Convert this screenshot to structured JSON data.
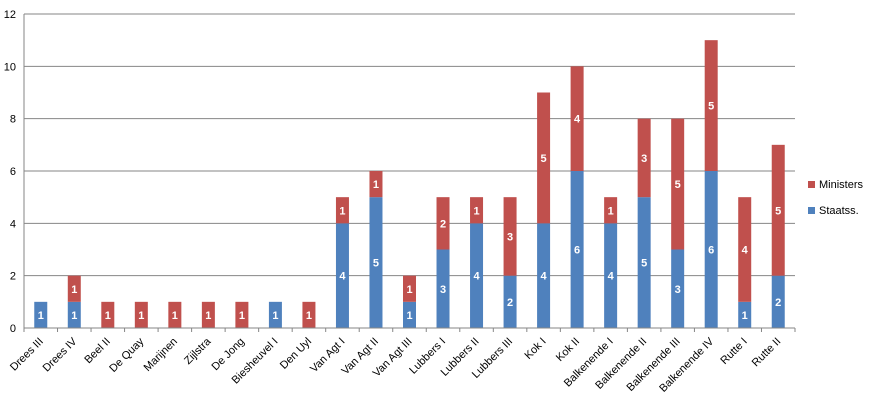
{
  "chart_data": {
    "type": "bar",
    "stacked": true,
    "title": "",
    "xlabel": "",
    "ylabel": "",
    "ylim": [
      0,
      12
    ],
    "yticks": [
      0,
      2,
      4,
      6,
      8,
      10,
      12
    ],
    "grid": true,
    "legend_position": "right",
    "categories": [
      "Drees III",
      "Drees IV",
      "Beel II",
      "De Quay",
      "Marijnen",
      "Zijlstra",
      "De Jong",
      "Biesheuvel I",
      "Den Uyl",
      "Van Agt I",
      "Van Agt II",
      "Van Agt III",
      "Lubbers I",
      "Lubbers II",
      "Lubbers III",
      "Kok I",
      "Kok II",
      "Balkenende I",
      "Balkenende II",
      "Balkenende III",
      "Balkenende IV",
      "Rutte I",
      "Rutte II"
    ],
    "series": [
      {
        "name": "Staatss.",
        "color": "#4f81bd",
        "values": [
          1,
          1,
          0,
          0,
          0,
          0,
          0,
          1,
          0,
          4,
          5,
          1,
          3,
          4,
          2,
          4,
          6,
          4,
          5,
          3,
          6,
          1,
          2
        ]
      },
      {
        "name": "Ministers",
        "color": "#c0504d",
        "values": [
          0,
          1,
          1,
          1,
          1,
          1,
          1,
          0,
          1,
          1,
          1,
          1,
          2,
          1,
          3,
          5,
          4,
          1,
          3,
          5,
          5,
          4,
          5
        ]
      }
    ],
    "legend_order": [
      "Ministers",
      "Staatss."
    ]
  }
}
